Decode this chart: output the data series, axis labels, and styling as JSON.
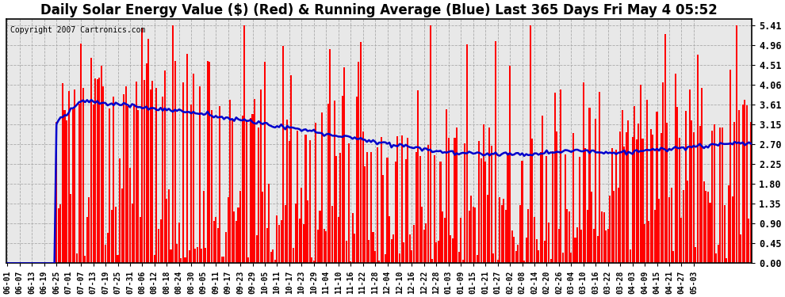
{
  "title": "Daily Solar Energy Value ($) (Red) & Running Average (Blue) Last 365 Days Fri May 4 05:52",
  "copyright": "Copyright 2007 Cartronics.com",
  "yticks": [
    0.0,
    0.45,
    0.9,
    1.35,
    1.8,
    2.25,
    2.7,
    3.15,
    3.61,
    4.06,
    4.51,
    4.96,
    5.41
  ],
  "bar_color": "#ff0000",
  "line_color": "#0000cc",
  "bg_color": "#ffffff",
  "plot_bg_color": "#e8e8e8",
  "grid_color": "#aaaaaa",
  "title_fontsize": 12,
  "ymax": 5.55,
  "ymin": 0.0,
  "xtick_labels": [
    "06-01",
    "06-07",
    "06-13",
    "06-19",
    "06-25",
    "07-01",
    "07-07",
    "07-13",
    "07-19",
    "07-25",
    "07-31",
    "08-06",
    "08-12",
    "08-18",
    "08-24",
    "08-30",
    "09-05",
    "09-11",
    "09-17",
    "09-23",
    "09-29",
    "10-05",
    "10-11",
    "10-17",
    "10-23",
    "10-29",
    "11-04",
    "11-10",
    "11-16",
    "11-22",
    "11-28",
    "12-04",
    "12-10",
    "12-16",
    "12-22",
    "12-28",
    "01-03",
    "01-09",
    "01-15",
    "01-21",
    "01-27",
    "02-02",
    "02-08",
    "02-14",
    "02-20",
    "02-26",
    "03-04",
    "03-10",
    "03-16",
    "03-22",
    "03-28",
    "04-03",
    "04-09",
    "04-15",
    "04-21",
    "04-27",
    "05-03"
  ]
}
